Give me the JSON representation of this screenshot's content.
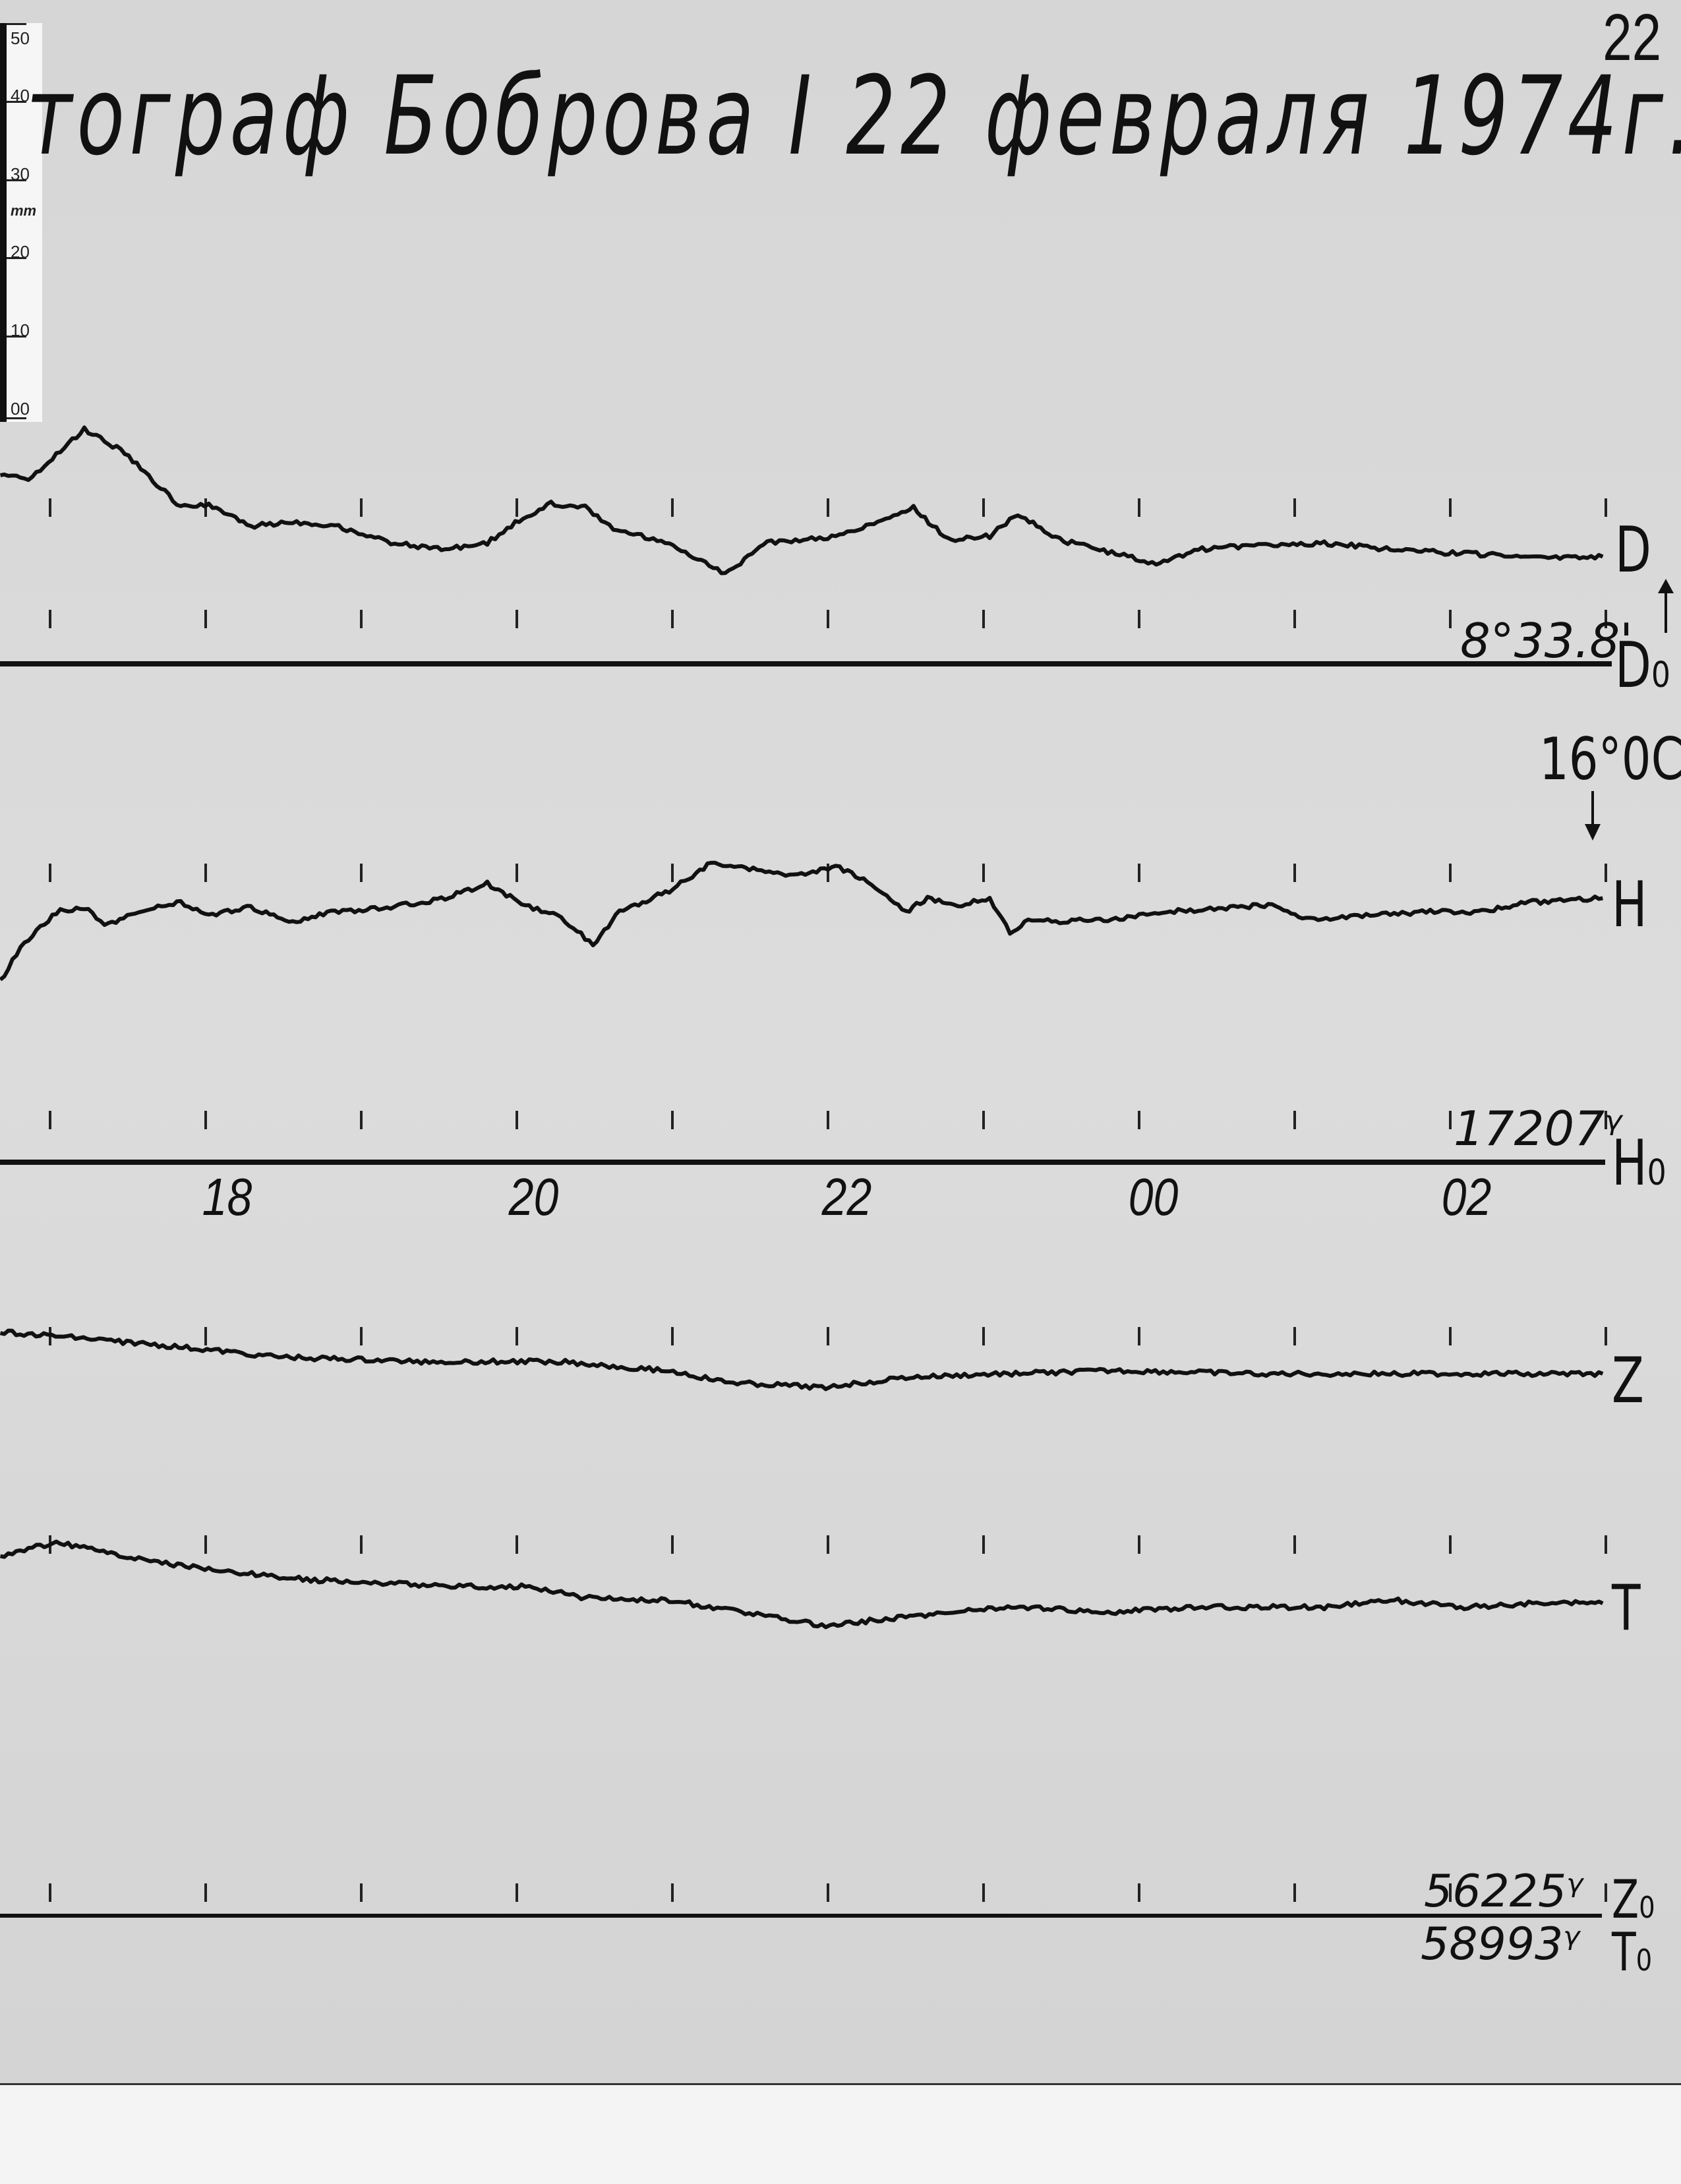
{
  "page_number": "22",
  "title": "тограф Боброва I  22 февраля  1974г.",
  "ruler": {
    "labels": [
      "50",
      "40",
      "30",
      "mm",
      "20",
      "10",
      "00"
    ]
  },
  "annotations": {
    "temperature": "16°0C",
    "D_label": "D",
    "D0_label": "D₀",
    "D0_value": "8°33.8'",
    "H_label": "H",
    "H0_label": "H₀",
    "H0_value": "17207ᵞ",
    "Z_label": "Z",
    "Z0_label": "Z₀",
    "Z0_value": "56225ᵞ",
    "T_label": "T",
    "T0_label": "T₀",
    "T0_value": "58993ᵞ"
  },
  "colors": {
    "paper": "#d9d9d9",
    "trace": "#111111"
  },
  "chart_data": {
    "type": "line",
    "title": "",
    "xlabel": "",
    "ylabel": "",
    "x_tick_labels": [
      "18",
      "20",
      "22",
      "00",
      "02"
    ],
    "x_ticks_hours": [
      17,
      18,
      19,
      20,
      21,
      22,
      23,
      24,
      25,
      26,
      27
    ],
    "x_range_hours": [
      16.68,
      27
    ],
    "y_unit_note": "mm",
    "grid": false,
    "series": [
      {
        "name": "D",
        "baseline": "D0",
        "x": [
          16.68,
          16.86,
          17.22,
          17.48,
          17.84,
          18.02,
          18.29,
          18.56,
          18.83,
          19.19,
          19.54,
          19.81,
          19.99,
          20.22,
          20.44,
          20.62,
          20.98,
          21.34,
          21.61,
          22.05,
          22.32,
          22.55,
          22.77,
          23.04,
          23.22,
          23.49,
          23.85,
          24.11,
          24.38,
          24.74,
          25.19,
          25.64,
          26.09,
          26.53,
          26.98
        ],
        "y": [
          24.9,
          24.0,
          30.7,
          27.6,
          20.4,
          20.9,
          18.0,
          18.5,
          18.0,
          15.8,
          14.9,
          15.8,
          18.5,
          20.9,
          20.4,
          17.6,
          15.8,
          11.8,
          15.8,
          16.7,
          18.5,
          20.4,
          16.2,
          16.7,
          19.5,
          16.2,
          14.4,
          13.1,
          14.9,
          15.5,
          15.8,
          14.9,
          14.4,
          14.0,
          14.0
        ]
      },
      {
        "name": "H",
        "baseline": "H0",
        "x": [
          16.68,
          16.81,
          17.04,
          17.22,
          17.35,
          17.57,
          17.84,
          18.02,
          18.29,
          18.56,
          18.83,
          19.19,
          19.54,
          19.81,
          20.08,
          20.26,
          20.49,
          20.66,
          20.98,
          21.25,
          21.52,
          21.78,
          22.05,
          22.28,
          22.5,
          22.64,
          22.86,
          23.04,
          23.17,
          23.31,
          23.49,
          23.85,
          24.2,
          24.56,
          24.83,
          25.1,
          25.46,
          25.82,
          26.18,
          26.53,
          26.98
        ],
        "y": [
          23.6,
          28.2,
          32.7,
          33.3,
          30.9,
          32.7,
          34.0,
          32.2,
          33.3,
          31.5,
          32.7,
          33.3,
          34.5,
          36.4,
          33.3,
          32.2,
          28.5,
          32.7,
          35.5,
          39.1,
          38.2,
          37.3,
          38.7,
          36.4,
          32.7,
          34.5,
          33.6,
          34.5,
          30.0,
          31.8,
          31.5,
          31.8,
          32.7,
          33.3,
          33.6,
          31.8,
          32.2,
          32.7,
          32.7,
          34.0,
          34.5
        ]
      },
      {
        "name": "Z",
        "baseline": "Z0",
        "x": [
          16.68,
          17.57,
          18.47,
          19.36,
          20.26,
          20.98,
          21.34,
          21.96,
          22.5,
          23.13,
          23.85,
          24.74,
          25.64,
          26.98
        ],
        "y": [
          76.4,
          74.9,
          73.1,
          72.5,
          72.5,
          71.3,
          69.8,
          69.1,
          70.4,
          70.9,
          71.3,
          70.9,
          70.9,
          70.9
        ]
      },
      {
        "name": "T",
        "baseline": "T0",
        "x": [
          16.68,
          17.04,
          17.57,
          18.02,
          18.65,
          19.19,
          19.63,
          20.08,
          20.44,
          20.98,
          21.52,
          21.96,
          22.5,
          23.13,
          23.85,
          24.38,
          25.19,
          25.64,
          26.09,
          26.53,
          26.98
        ],
        "y": [
          47.1,
          48.9,
          46.7,
          45.3,
          44.0,
          43.5,
          43.1,
          43.1,
          41.6,
          41.3,
          39.5,
          38.0,
          39.1,
          40.4,
          39.8,
          40.4,
          40.4,
          41.3,
          40.4,
          40.9,
          40.9
        ]
      }
    ]
  }
}
